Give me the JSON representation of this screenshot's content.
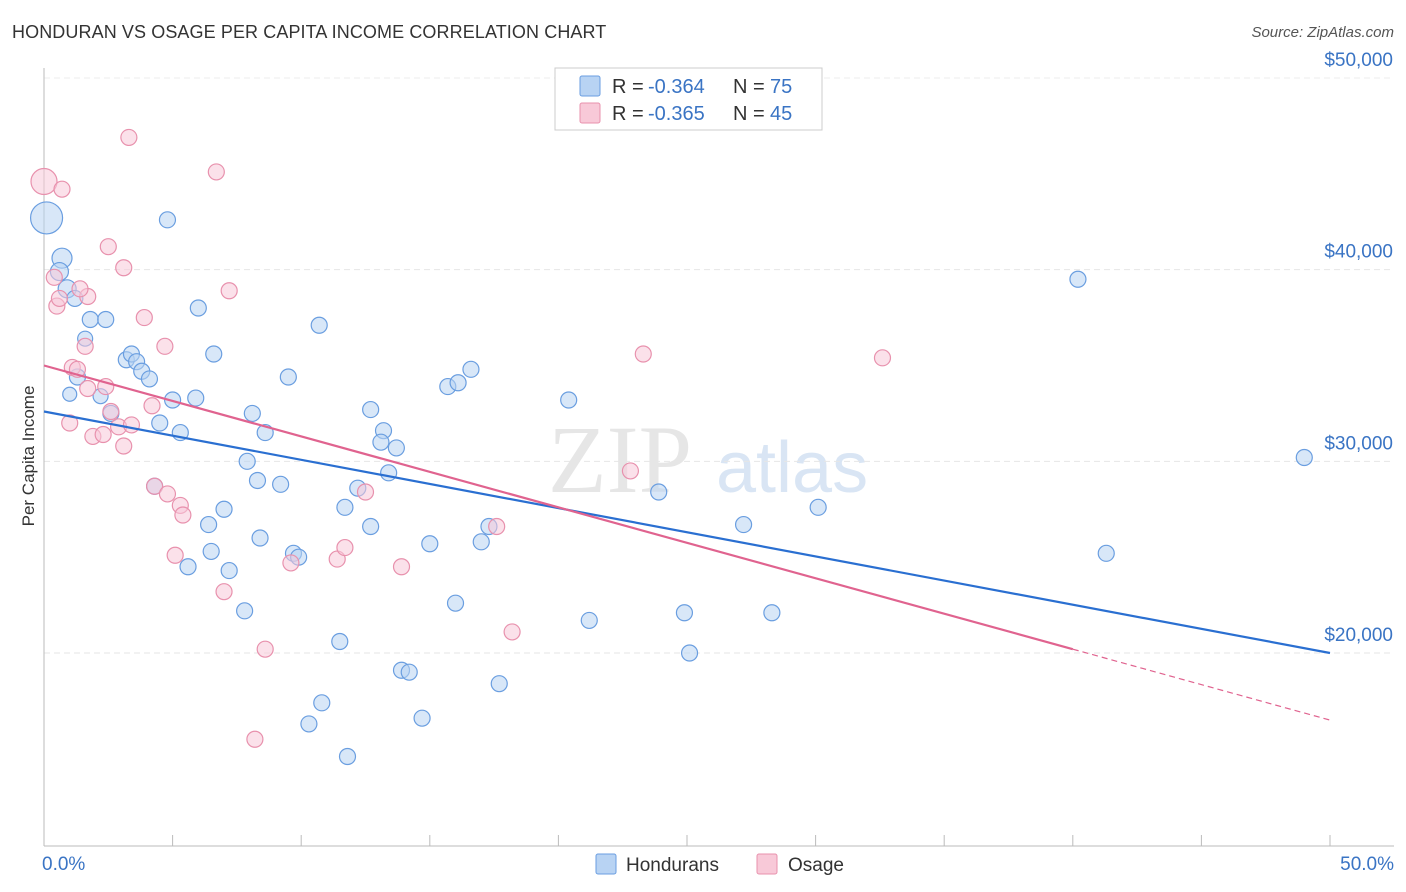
{
  "title": "HONDURAN VS OSAGE PER CAPITA INCOME CORRELATION CHART",
  "source": "Source: ZipAtlas.com",
  "watermark": {
    "zip": "ZIP",
    "atlas": "atlas"
  },
  "colors": {
    "hondurans_fill": "#b8d3f3",
    "hondurans_stroke": "#6a9ee0",
    "hondurans_line": "#2a6fd1",
    "osage_fill": "#f8c9d8",
    "osage_stroke": "#e891ad",
    "osage_line": "#e0638f",
    "axis_text": "#3a74c4"
  },
  "legend": {
    "rows": [
      {
        "r_label": "R =",
        "r_value": "-0.364",
        "n_label": "N =",
        "n_value": "75"
      },
      {
        "r_label": "R =",
        "r_value": "-0.365",
        "n_label": "N =",
        "n_value": "45"
      }
    ]
  },
  "bottom_legend": [
    "Hondurans",
    "Osage"
  ],
  "chart_data": {
    "type": "scatter",
    "ylabel": "Per Capita Income",
    "xlim": [
      0,
      50
    ],
    "ylim": [
      10000,
      52000
    ],
    "y_ticks": [
      {
        "value": 20000,
        "label": "$20,000"
      },
      {
        "value": 30000,
        "label": "$30,000"
      },
      {
        "value": 40000,
        "label": "$40,000"
      },
      {
        "value": 50000,
        "label": "$50,000"
      }
    ],
    "x_tick_labels": {
      "min": "0.0%",
      "max": "50.0%"
    },
    "grid": true,
    "series": [
      {
        "name": "Hondurans",
        "trend": {
          "x": [
            0,
            50
          ],
          "y": [
            32600,
            20000
          ],
          "dashed_from": null
        },
        "points": [
          [
            0.1,
            42700,
            32
          ],
          [
            0.7,
            40600,
            20
          ],
          [
            0.6,
            39900,
            18
          ],
          [
            0.9,
            39000,
            18
          ],
          [
            1.2,
            38500,
            16
          ],
          [
            1.8,
            37400,
            16
          ],
          [
            2.4,
            37400,
            16
          ],
          [
            1.6,
            36400,
            15
          ],
          [
            1.3,
            34400,
            16
          ],
          [
            2.2,
            33400,
            15
          ],
          [
            3.2,
            35300,
            16
          ],
          [
            3.4,
            35600,
            16
          ],
          [
            3.6,
            35200,
            16
          ],
          [
            3.8,
            34700,
            16
          ],
          [
            4.1,
            34300,
            16
          ],
          [
            4.8,
            42600,
            16
          ],
          [
            6.0,
            38000,
            16
          ],
          [
            6.6,
            35600,
            16
          ],
          [
            5.0,
            33200,
            16
          ],
          [
            5.9,
            33300,
            16
          ],
          [
            4.5,
            32000,
            16
          ],
          [
            2.6,
            32500,
            16
          ],
          [
            5.3,
            31500,
            16
          ],
          [
            8.1,
            32500,
            16
          ],
          [
            8.6,
            31500,
            16
          ],
          [
            9.5,
            34400,
            16
          ],
          [
            10.7,
            37100,
            16
          ],
          [
            7.9,
            30000,
            16
          ],
          [
            8.3,
            29000,
            16
          ],
          [
            9.2,
            28800,
            16
          ],
          [
            4.3,
            28700,
            16
          ],
          [
            7.0,
            27500,
            16
          ],
          [
            6.4,
            26700,
            16
          ],
          [
            8.4,
            26000,
            16
          ],
          [
            6.5,
            25300,
            16
          ],
          [
            5.6,
            24500,
            16
          ],
          [
            7.2,
            24300,
            16
          ],
          [
            7.8,
            22200,
            16
          ],
          [
            9.7,
            25200,
            16
          ],
          [
            9.9,
            25000,
            16
          ],
          [
            12.7,
            32700,
            16
          ],
          [
            13.2,
            31600,
            16
          ],
          [
            13.1,
            31000,
            16
          ],
          [
            13.7,
            30700,
            16
          ],
          [
            13.4,
            29400,
            16
          ],
          [
            12.2,
            28600,
            16
          ],
          [
            11.7,
            27600,
            16
          ],
          [
            12.7,
            26600,
            16
          ],
          [
            15.7,
            33900,
            16
          ],
          [
            16.1,
            34100,
            16
          ],
          [
            16.6,
            34800,
            16
          ],
          [
            20.4,
            33200,
            16
          ],
          [
            15.0,
            25700,
            16
          ],
          [
            17.0,
            25800,
            16
          ],
          [
            17.3,
            26600,
            16
          ],
          [
            16.0,
            22600,
            16
          ],
          [
            11.5,
            20600,
            16
          ],
          [
            13.9,
            19100,
            16
          ],
          [
            14.2,
            19000,
            16
          ],
          [
            10.8,
            17400,
            16
          ],
          [
            10.3,
            16300,
            16
          ],
          [
            14.7,
            16600,
            16
          ],
          [
            11.8,
            14600,
            16
          ],
          [
            17.7,
            18400,
            16
          ],
          [
            21.2,
            21700,
            16
          ],
          [
            23.9,
            28400,
            16
          ],
          [
            24.9,
            22100,
            16
          ],
          [
            25.1,
            20000,
            16
          ],
          [
            27.2,
            26700,
            16
          ],
          [
            28.3,
            22100,
            16
          ],
          [
            30.1,
            27600,
            16
          ],
          [
            40.2,
            39500,
            16
          ],
          [
            41.3,
            25200,
            16
          ],
          [
            49.0,
            30200,
            16
          ],
          [
            1.0,
            33500,
            14
          ]
        ]
      },
      {
        "name": "Osage",
        "trend": {
          "x": [
            0,
            50
          ],
          "y": [
            35000,
            16500
          ],
          "dashed_from": 40
        },
        "points": [
          [
            0.0,
            44600,
            26
          ],
          [
            0.7,
            44200,
            16
          ],
          [
            0.4,
            39600,
            16
          ],
          [
            0.5,
            38100,
            16
          ],
          [
            0.6,
            38500,
            16
          ],
          [
            1.7,
            38600,
            16
          ],
          [
            1.4,
            39000,
            16
          ],
          [
            2.5,
            41200,
            16
          ],
          [
            3.1,
            40100,
            16
          ],
          [
            3.3,
            46900,
            16
          ],
          [
            6.7,
            45100,
            16
          ],
          [
            7.2,
            38900,
            16
          ],
          [
            3.9,
            37500,
            16
          ],
          [
            4.7,
            36000,
            16
          ],
          [
            1.6,
            36000,
            16
          ],
          [
            1.1,
            34900,
            16
          ],
          [
            1.3,
            34800,
            16
          ],
          [
            1.7,
            33800,
            16
          ],
          [
            2.4,
            33900,
            16
          ],
          [
            1.0,
            32000,
            16
          ],
          [
            2.6,
            32600,
            16
          ],
          [
            2.9,
            31800,
            16
          ],
          [
            3.4,
            31900,
            16
          ],
          [
            4.2,
            32900,
            16
          ],
          [
            1.9,
            31300,
            16
          ],
          [
            2.3,
            31400,
            16
          ],
          [
            3.1,
            30800,
            16
          ],
          [
            4.3,
            28700,
            16
          ],
          [
            4.8,
            28300,
            16
          ],
          [
            5.3,
            27700,
            16
          ],
          [
            5.4,
            27200,
            16
          ],
          [
            5.1,
            25100,
            16
          ],
          [
            7.0,
            23200,
            16
          ],
          [
            9.6,
            24700,
            16
          ],
          [
            11.4,
            24900,
            16
          ],
          [
            11.7,
            25500,
            16
          ],
          [
            12.5,
            28400,
            16
          ],
          [
            13.9,
            24500,
            16
          ],
          [
            17.6,
            26600,
            16
          ],
          [
            18.2,
            21100,
            16
          ],
          [
            22.8,
            29500,
            16
          ],
          [
            23.3,
            35600,
            16
          ],
          [
            8.6,
            20200,
            16
          ],
          [
            8.2,
            15500,
            16
          ],
          [
            32.6,
            35400,
            16
          ]
        ]
      }
    ]
  }
}
